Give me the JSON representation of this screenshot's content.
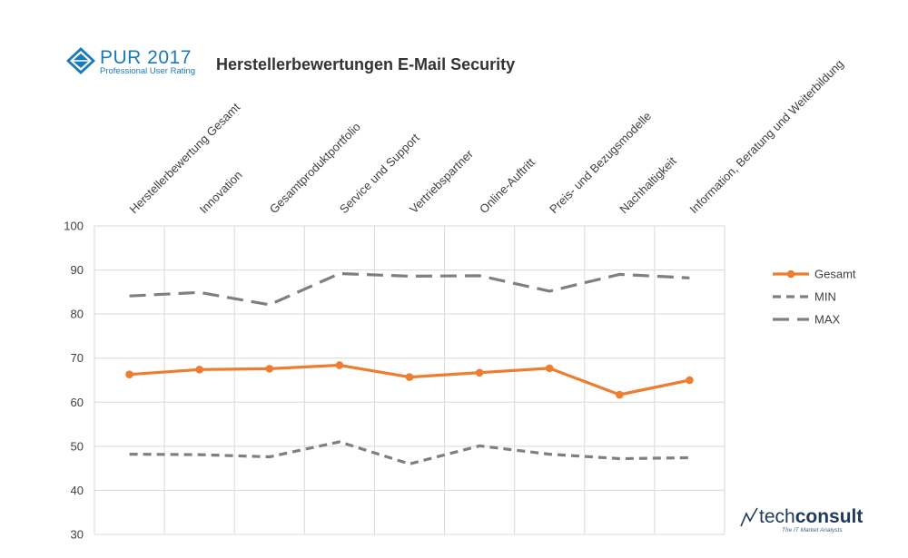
{
  "brand": {
    "logo_title": "PUR 2017",
    "logo_subtitle": "Professional User Rating",
    "heading": "Herstellerbewertungen E-Mail Security",
    "footer_logo_prefix": "tech",
    "footer_logo_main": "consult",
    "footer_tagline": "The IT Market Analysts"
  },
  "colors": {
    "gesamt": "#ED7D31",
    "min_max": "#7F7F7F",
    "grid": "#D9D9D9",
    "brand_blue": "#1A7AB8"
  },
  "chart_data": {
    "type": "line",
    "title": "Herstellerbewertungen E-Mail Security",
    "categories": [
      "Herstellerbewertung Gesamt",
      "Innovation",
      "Gesamtproduktportfolio",
      "Service und Support",
      "Vertriebspartner",
      "Online-Auftritt",
      "Preis- und Bezugsmodelle",
      "Nachhaltigkeit",
      "Information, Beratung und Weiterbildung"
    ],
    "ylim": [
      30,
      100
    ],
    "yticks": [
      30,
      40,
      50,
      60,
      70,
      80,
      90,
      100
    ],
    "grid": true,
    "legend_position": "right",
    "series": [
      {
        "name": "Gesamt",
        "style": "solid-markers",
        "values": [
          66.3,
          67.4,
          67.6,
          68.4,
          65.7,
          66.7,
          67.7,
          61.7,
          65.0
        ]
      },
      {
        "name": "MIN",
        "style": "short-dash",
        "values": [
          48.2,
          48.1,
          47.6,
          51.0,
          46.0,
          50.1,
          48.2,
          47.2,
          47.4
        ]
      },
      {
        "name": "MAX",
        "style": "long-dash",
        "values": [
          84.1,
          84.9,
          82.1,
          89.2,
          88.6,
          88.7,
          85.2,
          89.0,
          88.2
        ]
      }
    ]
  }
}
